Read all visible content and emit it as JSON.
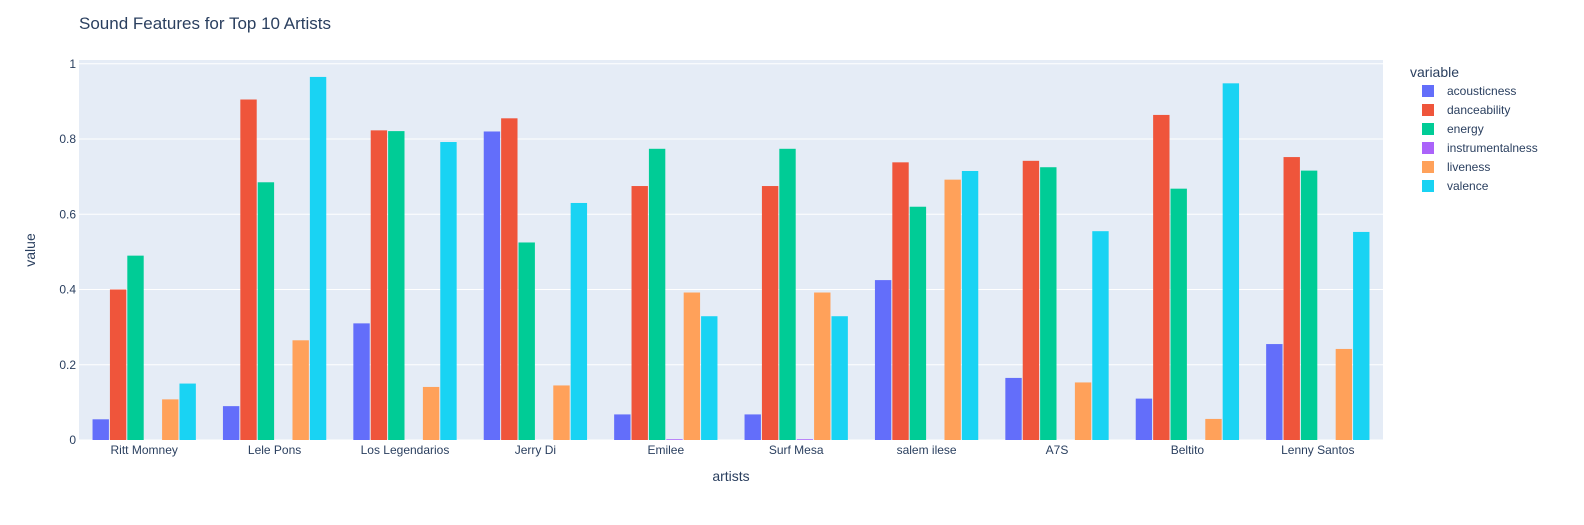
{
  "chart_data": {
    "type": "bar",
    "title": "Sound Features for Top 10 Artists",
    "xlabel": "artists",
    "ylabel": "value",
    "ylim": [
      0,
      1.01
    ],
    "yticks": [
      0,
      0.2,
      0.4,
      0.6,
      0.8,
      1
    ],
    "ytick_labels": [
      "0",
      "0.2",
      "0.4",
      "0.6",
      "0.8",
      "1"
    ],
    "grid": true,
    "legend_title": "variable",
    "legend_position": "top-right",
    "categories": [
      "Ritt Momney",
      "Lele Pons",
      "Los Legendarios",
      "Jerry Di",
      "Emilee",
      "Surf Mesa",
      "salem ilese",
      "A7S",
      "Beltito",
      "Lenny Santos"
    ],
    "series": [
      {
        "name": "acousticness",
        "color": "#636efa",
        "values": [
          0.055,
          0.09,
          0.31,
          0.82,
          0.068,
          0.068,
          0.425,
          0.165,
          0.11,
          0.255
        ]
      },
      {
        "name": "danceability",
        "color": "#ef553b",
        "values": [
          0.4,
          0.905,
          0.823,
          0.855,
          0.675,
          0.675,
          0.738,
          0.742,
          0.864,
          0.752
        ]
      },
      {
        "name": "energy",
        "color": "#00cc96",
        "values": [
          0.49,
          0.685,
          0.821,
          0.525,
          0.774,
          0.774,
          0.62,
          0.725,
          0.668,
          0.716
        ]
      },
      {
        "name": "instrumentalness",
        "color": "#ab63fa",
        "values": [
          0,
          0,
          0,
          0,
          0.002,
          0.002,
          0,
          0,
          0,
          0
        ]
      },
      {
        "name": "liveness",
        "color": "#ffa15a",
        "values": [
          0.108,
          0.265,
          0.141,
          0.145,
          0.392,
          0.392,
          0.692,
          0.153,
          0.056,
          0.242
        ]
      },
      {
        "name": "valence",
        "color": "#19d3f3",
        "values": [
          0.15,
          0.965,
          0.792,
          0.63,
          0.329,
          0.329,
          0.715,
          0.555,
          0.948,
          0.553
        ]
      }
    ]
  }
}
